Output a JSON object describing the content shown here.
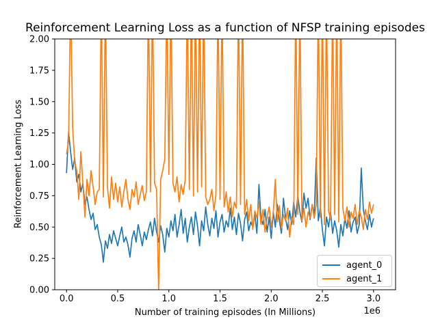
{
  "figure": {
    "title": "Reinforcement Learning Loss as a function of NFSP training episodes"
  },
  "chart_data": {
    "type": "line",
    "title": "Reinforcement Learning Loss as a function of NFSP training episodes",
    "xlabel": "Number of training episodes (In Millions)",
    "ylabel": "Reinforcement Learning Loss",
    "x_offset_label": "1e6",
    "xlim": [
      -0.115,
      3.215
    ],
    "ylim": [
      0,
      2
    ],
    "grid": false,
    "x_ticks": [
      0.0,
      0.5,
      1.0,
      1.5,
      2.0,
      2.5,
      3.0
    ],
    "x_tick_labels": [
      "0.0",
      "0.5",
      "1.0",
      "1.5",
      "2.0",
      "2.5",
      "3.0"
    ],
    "y_ticks": [
      0.0,
      0.25,
      0.5,
      0.75,
      1.0,
      1.25,
      1.5,
      1.75,
      2.0
    ],
    "y_tick_labels": [
      "0.00",
      "0.25",
      "0.50",
      "0.75",
      "1.00",
      "1.25",
      "1.50",
      "1.75",
      "2.00"
    ],
    "legend": {
      "position": "lower right",
      "entries": [
        {
          "label": "agent_0",
          "color": "#1f77b4"
        },
        {
          "label": "agent_1",
          "color": "#ff7f0e"
        }
      ]
    },
    "clip_note": "values above ylim max are off-scale spikes clipped at y=2.0",
    "series": [
      {
        "name": "agent_0",
        "color": "#1f77b4",
        "x_start": 0.0,
        "x_step": 0.02,
        "x_units_multiplier": 1000000,
        "y": [
          0.93,
          1.26,
          1.1,
          0.96,
          1.05,
          0.86,
          0.92,
          0.78,
          0.85,
          0.68,
          0.74,
          0.64,
          0.56,
          0.61,
          0.48,
          0.52,
          0.42,
          0.36,
          0.22,
          0.39,
          0.33,
          0.44,
          0.37,
          0.47,
          0.41,
          0.35,
          0.43,
          0.5,
          0.38,
          0.42,
          0.36,
          0.26,
          0.41,
          0.47,
          0.38,
          0.52,
          0.44,
          0.35,
          0.46,
          0.4,
          0.48,
          0.54,
          0.43,
          0.57,
          0.46,
          0.38,
          0.51,
          0.44,
          0.3,
          0.49,
          0.42,
          0.55,
          0.47,
          0.6,
          0.42,
          0.52,
          0.64,
          0.45,
          0.57,
          0.38,
          0.5,
          0.58,
          0.44,
          0.62,
          0.51,
          0.35,
          0.55,
          0.47,
          0.66,
          0.52,
          0.43,
          0.57,
          0.49,
          0.63,
          0.42,
          0.54,
          0.6,
          0.46,
          0.55,
          0.5,
          0.65,
          0.48,
          0.58,
          0.44,
          0.61,
          0.53,
          0.39,
          0.56,
          0.62,
          0.47,
          0.54,
          0.5,
          0.6,
          0.45,
          0.84,
          0.57,
          0.52,
          0.64,
          0.46,
          0.58,
          0.41,
          0.62,
          0.5,
          0.68,
          0.55,
          0.45,
          0.73,
          0.57,
          0.48,
          0.63,
          0.52,
          0.7,
          0.58,
          0.75,
          0.62,
          0.54,
          0.77,
          0.65,
          0.73,
          0.56,
          0.68,
          0.6,
          1.05,
          0.55,
          0.66,
          0.48,
          0.35,
          0.58,
          0.5,
          0.62,
          0.45,
          0.55,
          0.47,
          0.34,
          0.52,
          0.43,
          0.57,
          0.49,
          0.63,
          0.46,
          0.54,
          0.58,
          0.45,
          0.52,
          0.97,
          0.64,
          0.55,
          0.48,
          0.6,
          0.5,
          0.57
        ]
      },
      {
        "name": "agent_1",
        "color": "#ff7f0e",
        "x_start": 0.0,
        "x_step": 0.02,
        "x_units_multiplier": 1000000,
        "y": [
          1.08,
          1.18,
          2.35,
          1.29,
          1.02,
          0.95,
          0.72,
          1.1,
          0.85,
          0.58,
          0.88,
          0.75,
          0.95,
          0.82,
          0.68,
          0.78,
          0.8,
          2.35,
          0.74,
          2.35,
          0.82,
          0.65,
          0.9,
          0.72,
          0.85,
          0.7,
          0.82,
          0.66,
          0.78,
          0.88,
          0.72,
          0.64,
          0.8,
          0.74,
          0.86,
          0.68,
          0.76,
          0.83,
          0.71,
          0.78,
          2.35,
          0.78,
          2.35,
          0.85,
          0.8,
          0.0,
          0.88,
          0.95,
          1.04,
          2.35,
          0.92,
          2.35,
          0.85,
          0.78,
          0.9,
          0.7,
          0.84,
          0.76,
          0.88,
          2.35,
          0.8,
          2.35,
          0.75,
          2.35,
          0.78,
          2.35,
          0.82,
          2.35,
          0.74,
          0.68,
          0.72,
          0.8,
          0.63,
          0.76,
          2.35,
          0.72,
          2.35,
          0.66,
          0.78,
          0.62,
          0.74,
          0.58,
          0.7,
          0.65,
          2.35,
          0.68,
          2.35,
          0.6,
          0.72,
          0.55,
          0.68,
          0.48,
          0.63,
          0.57,
          0.7,
          0.52,
          0.64,
          0.46,
          0.58,
          0.66,
          0.5,
          0.61,
          0.88,
          0.54,
          0.67,
          0.49,
          0.6,
          0.55,
          0.65,
          0.42,
          0.58,
          0.52,
          2.35,
          0.6,
          2.35,
          0.55,
          0.65,
          0.5,
          0.62,
          0.57,
          0.68,
          0.57,
          0.68,
          2.35,
          0.58,
          2.35,
          0.52,
          2.35,
          0.63,
          0.56,
          2.35,
          0.6,
          2.35,
          0.54,
          2.35,
          0.65,
          0.55,
          0.66,
          0.5,
          0.62,
          0.57,
          0.68,
          0.52,
          0.63,
          0.58,
          0.48,
          0.64,
          0.56,
          0.7,
          0.61,
          0.68
        ]
      }
    ]
  }
}
